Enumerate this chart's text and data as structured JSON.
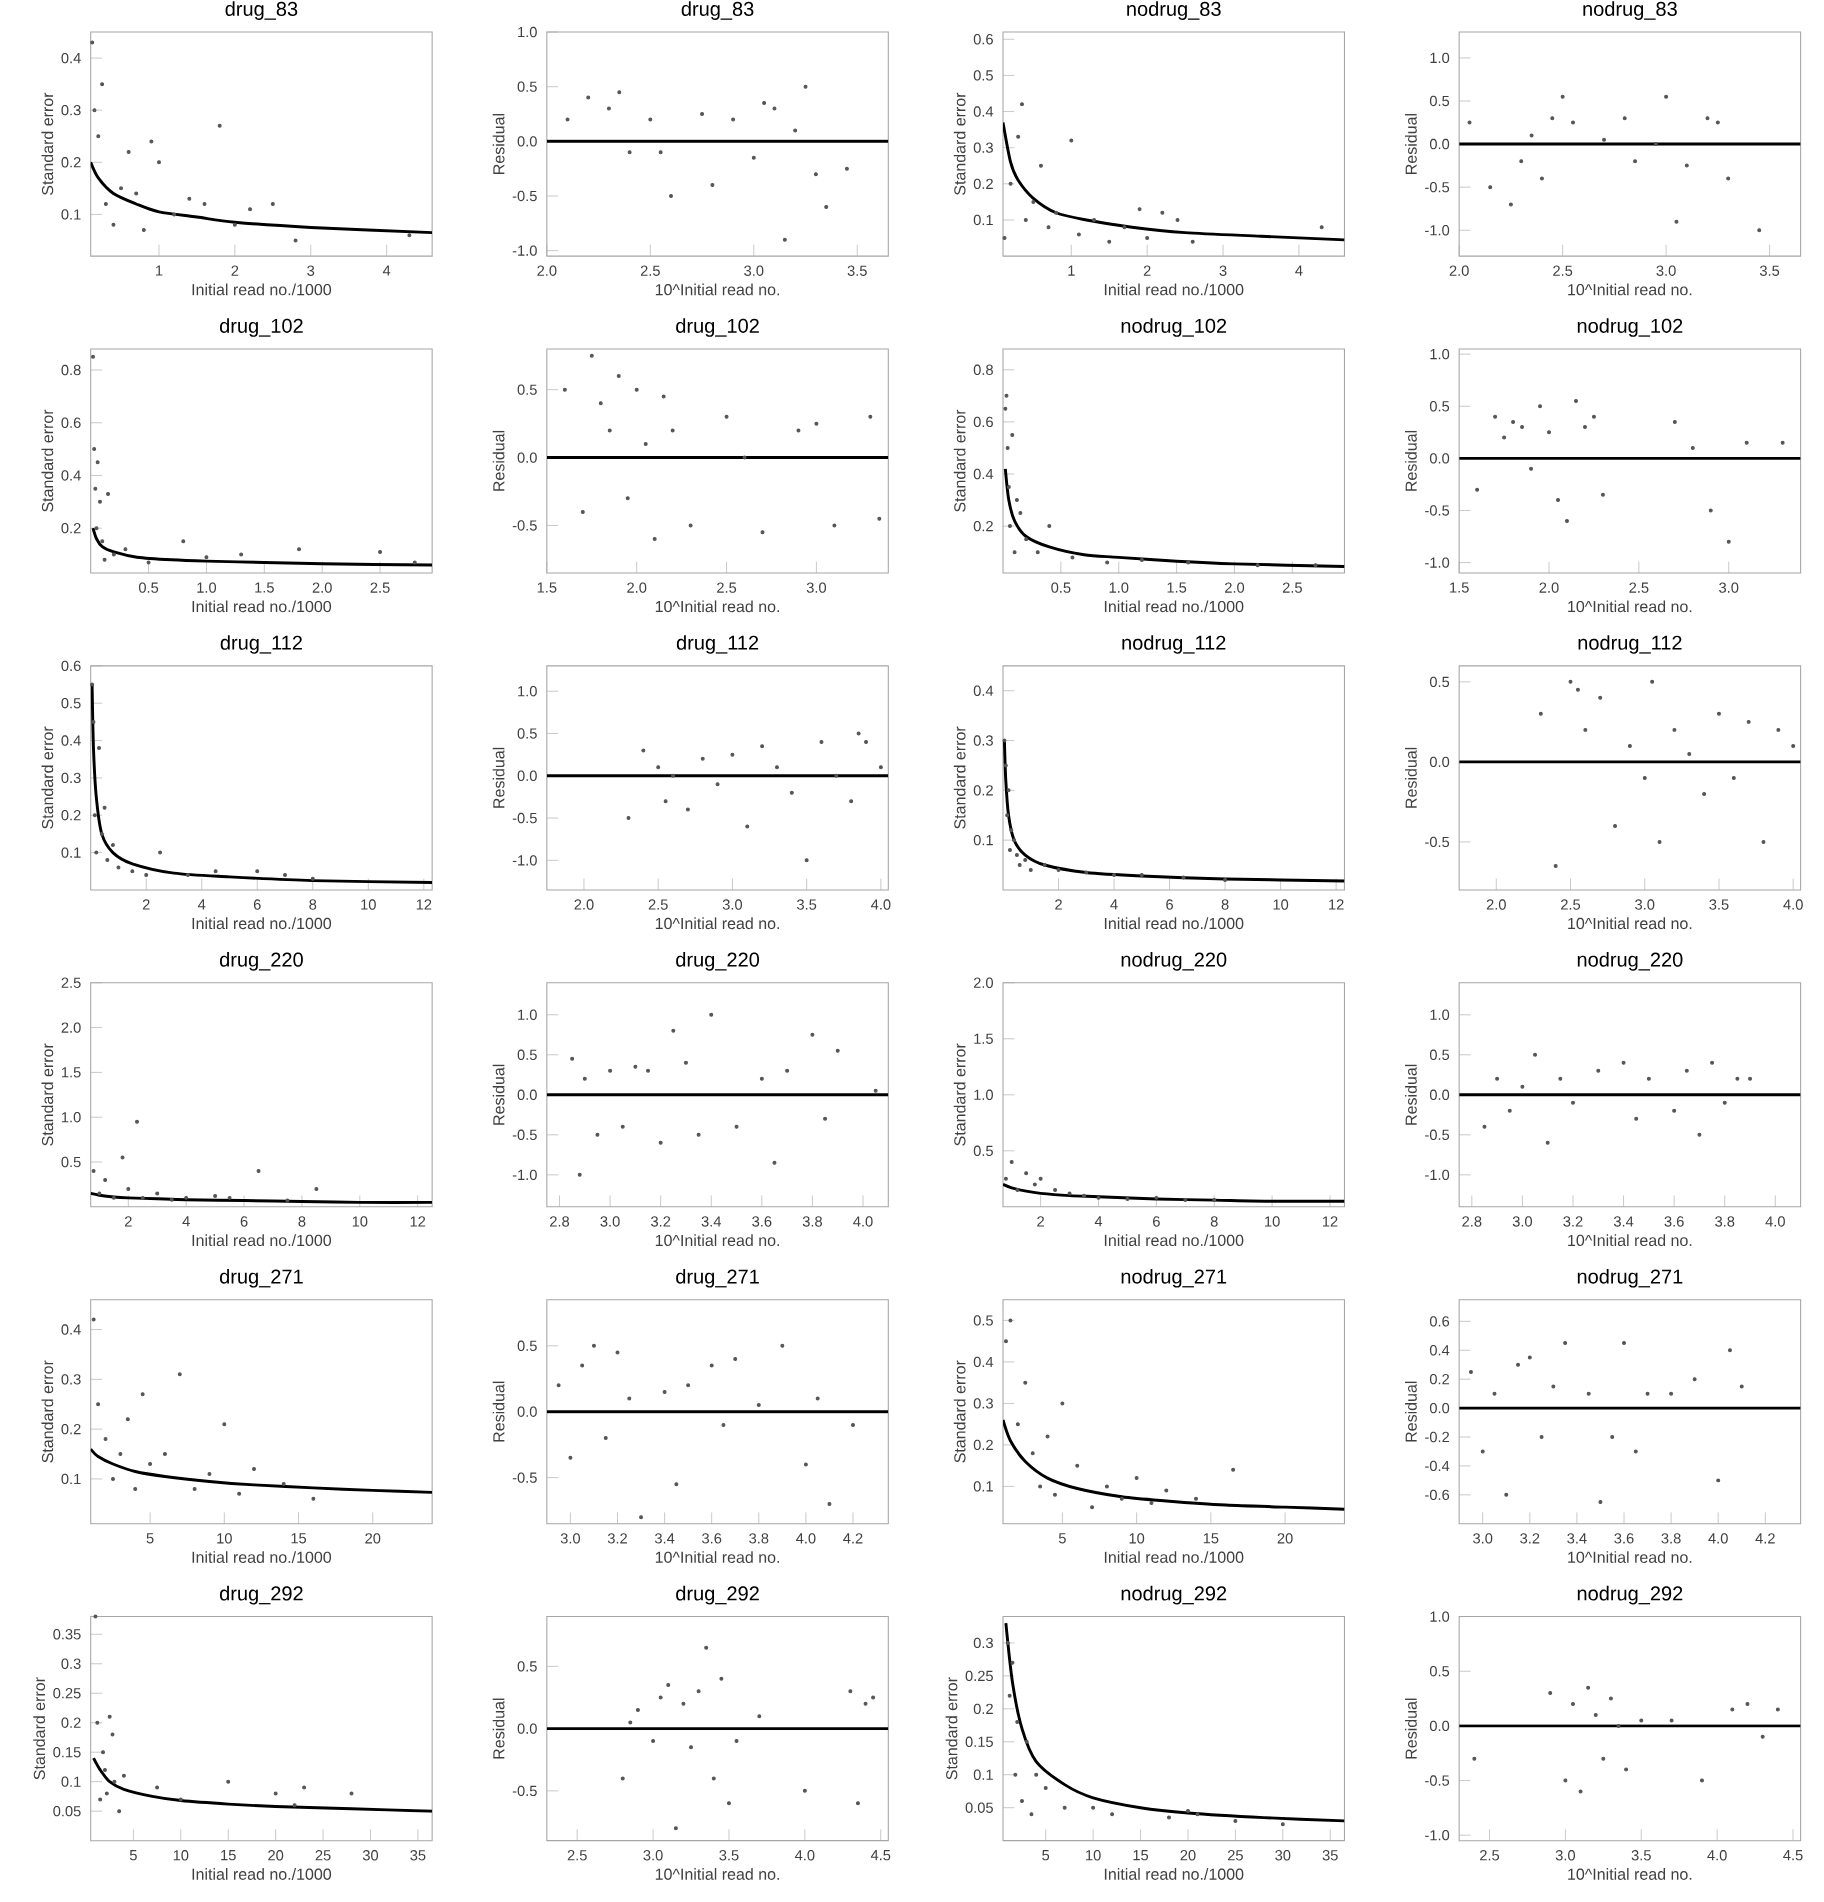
{
  "chart_data": [
    {
      "type": "scatter",
      "title": "drug_83",
      "xlabel": "Initial read no./1000",
      "ylabel": "Standard error",
      "xlim": [
        0.1,
        4.6
      ],
      "ylim": [
        0.02,
        0.45
      ],
      "xticks": [
        1,
        2,
        3,
        4
      ],
      "yticks": [
        0.1,
        0.2,
        0.3,
        0.4
      ],
      "series": [
        {
          "color": "#555555",
          "x": [
            0.12,
            0.15,
            0.2,
            0.25,
            0.3,
            0.4,
            0.5,
            0.6,
            0.7,
            0.8,
            0.9,
            1.0,
            1.2,
            1.4,
            1.6,
            1.8,
            2.0,
            2.2,
            2.5,
            2.8,
            4.3
          ],
          "values": [
            0.43,
            0.3,
            0.25,
            0.35,
            0.12,
            0.08,
            0.15,
            0.22,
            0.14,
            0.07,
            0.24,
            0.2,
            0.1,
            0.13,
            0.12,
            0.27,
            0.08,
            0.11,
            0.12,
            0.05,
            0.06
          ]
        },
        {
          "type": "line",
          "color": "#000000",
          "x": [
            0.1,
            0.2,
            0.4,
            0.7,
            1,
            1.5,
            2,
            3,
            4.6
          ],
          "values": [
            0.2,
            0.17,
            0.14,
            0.12,
            0.105,
            0.095,
            0.085,
            0.075,
            0.065
          ]
        }
      ]
    },
    {
      "type": "scatter",
      "title": "drug_83",
      "xlabel": "10^Initial read no.",
      "ylabel": "Residual",
      "xlim": [
        2.0,
        3.65
      ],
      "ylim": [
        -1.05,
        1.0
      ],
      "xticks": [
        {
          "value": 2,
          "label": "2.0"
        },
        2.5,
        {
          "value": 3,
          "label": "3.0"
        },
        3.5
      ],
      "yticks": [
        {
          "value": -1,
          "label": "-1.0"
        },
        -0.5,
        {
          "value": 0,
          "label": "0.0"
        },
        0.5,
        {
          "value": 1,
          "label": "1.0"
        }
      ],
      "ref_lines": [
        {
          "axis": "y",
          "value": 0
        }
      ],
      "series": [
        {
          "color": "#555555",
          "x": [
            2.1,
            2.2,
            2.3,
            2.35,
            2.4,
            2.5,
            2.55,
            2.6,
            2.75,
            2.8,
            2.9,
            3.0,
            3.05,
            3.1,
            3.15,
            3.2,
            3.25,
            3.3,
            3.35,
            3.45
          ],
          "values": [
            0.2,
            0.4,
            0.3,
            0.45,
            -0.1,
            0.2,
            -0.1,
            -0.5,
            0.25,
            -0.4,
            0.2,
            -0.15,
            0.35,
            0.3,
            -0.9,
            0.1,
            0.5,
            -0.3,
            -0.6,
            -0.25
          ]
        }
      ]
    },
    {
      "type": "scatter",
      "title": "nodrug_83",
      "xlabel": "Initial read no./1000",
      "ylabel": "Standard error",
      "xlim": [
        0.1,
        4.6
      ],
      "ylim": [
        0,
        0.62
      ],
      "xticks": [
        1,
        2,
        3,
        4
      ],
      "yticks": [
        0.1,
        0.2,
        0.3,
        0.4,
        0.5,
        0.6
      ],
      "series": [
        {
          "color": "#555555",
          "x": [
            0.12,
            0.2,
            0.3,
            0.35,
            0.4,
            0.5,
            0.6,
            0.7,
            0.8,
            1.0,
            1.1,
            1.3,
            1.5,
            1.7,
            1.9,
            2.0,
            2.2,
            2.4,
            2.6,
            4.3
          ],
          "values": [
            0.05,
            0.2,
            0.33,
            0.42,
            0.1,
            0.15,
            0.25,
            0.08,
            0.12,
            0.32,
            0.06,
            0.1,
            0.04,
            0.08,
            0.13,
            0.05,
            0.12,
            0.1,
            0.04,
            0.08
          ]
        },
        {
          "type": "line",
          "color": "#000000",
          "x": [
            0.1,
            0.2,
            0.3,
            0.5,
            0.8,
            1.2,
            1.8,
            2.5,
            3.5,
            4.6
          ],
          "values": [
            0.37,
            0.26,
            0.21,
            0.16,
            0.12,
            0.1,
            0.08,
            0.065,
            0.055,
            0.045
          ]
        }
      ]
    },
    {
      "type": "scatter",
      "title": "nodrug_83",
      "xlabel": "10^Initial read no.",
      "ylabel": "Residual",
      "xlim": [
        2.0,
        3.65
      ],
      "ylim": [
        -1.3,
        1.3
      ],
      "xticks": [
        {
          "value": 2,
          "label": "2.0"
        },
        2.5,
        {
          "value": 3,
          "label": "3.0"
        },
        3.5
      ],
      "yticks": [
        {
          "value": -1,
          "label": "-1.0"
        },
        -0.5,
        {
          "value": 0,
          "label": "0.0"
        },
        0.5,
        {
          "value": 1,
          "label": "1.0"
        }
      ],
      "ref_lines": [
        {
          "axis": "y",
          "value": 0
        }
      ],
      "series": [
        {
          "color": "#555555",
          "x": [
            2.05,
            2.15,
            2.25,
            2.3,
            2.35,
            2.4,
            2.45,
            2.5,
            2.55,
            2.7,
            2.8,
            2.85,
            2.95,
            3.0,
            3.05,
            3.1,
            3.2,
            3.25,
            3.3,
            3.45
          ],
          "values": [
            0.25,
            -0.5,
            -0.7,
            -0.2,
            0.1,
            -0.4,
            0.3,
            0.55,
            0.25,
            0.05,
            0.3,
            -0.2,
            0.0,
            0.55,
            -0.9,
            -0.25,
            0.3,
            0.25,
            -0.4,
            -1.0
          ]
        }
      ]
    },
    {
      "type": "scatter",
      "title": "drug_102",
      "xlabel": "Initial read no./1000",
      "ylabel": "Standard error",
      "xlim": [
        0,
        2.95
      ],
      "ylim": [
        0.03,
        0.88
      ],
      "xticks": [
        0.5,
        {
          "value": 1,
          "label": "1.0"
        },
        1.5,
        {
          "value": 2,
          "label": "2.0"
        },
        2.5
      ],
      "yticks": [
        0.2,
        0.4,
        0.6,
        0.8
      ],
      "series": [
        {
          "color": "#555555",
          "x": [
            0.02,
            0.03,
            0.04,
            0.05,
            0.06,
            0.08,
            0.1,
            0.12,
            0.15,
            0.2,
            0.3,
            0.5,
            0.8,
            1.0,
            1.3,
            1.8,
            2.5,
            2.8
          ],
          "values": [
            0.85,
            0.5,
            0.35,
            0.2,
            0.45,
            0.3,
            0.15,
            0.08,
            0.33,
            0.1,
            0.12,
            0.07,
            0.15,
            0.09,
            0.1,
            0.12,
            0.11,
            0.07
          ]
        },
        {
          "type": "line",
          "color": "#000000",
          "x": [
            0.02,
            0.05,
            0.1,
            0.2,
            0.4,
            0.7,
            1.0,
            1.5,
            2.0,
            2.95
          ],
          "values": [
            0.2,
            0.16,
            0.13,
            0.11,
            0.09,
            0.08,
            0.075,
            0.07,
            0.065,
            0.06
          ]
        }
      ]
    },
    {
      "type": "scatter",
      "title": "drug_102",
      "xlabel": "10^Initial read no.",
      "ylabel": "Residual",
      "xlim": [
        1.5,
        3.4
      ],
      "ylim": [
        -0.85,
        0.8
      ],
      "xticks": [
        1.5,
        {
          "value": 2,
          "label": "2.0"
        },
        2.5,
        {
          "value": 3,
          "label": "3.0"
        }
      ],
      "yticks": [
        -0.5,
        {
          "value": 0,
          "label": "0.0"
        },
        0.5
      ],
      "ref_lines": [
        {
          "axis": "y",
          "value": 0
        }
      ],
      "series": [
        {
          "color": "#555555",
          "x": [
            1.6,
            1.7,
            1.75,
            1.8,
            1.85,
            1.9,
            1.95,
            2.0,
            2.05,
            2.1,
            2.15,
            2.2,
            2.3,
            2.5,
            2.6,
            2.7,
            2.9,
            3.0,
            3.1,
            3.3,
            3.35
          ],
          "values": [
            0.5,
            -0.4,
            0.75,
            0.4,
            0.2,
            0.6,
            -0.3,
            0.5,
            0.1,
            -0.6,
            0.45,
            0.2,
            -0.5,
            0.3,
            0.0,
            -0.55,
            0.2,
            0.25,
            -0.5,
            0.3,
            -0.45
          ]
        }
      ]
    },
    {
      "type": "scatter",
      "title": "nodrug_102",
      "xlabel": "Initial read no./1000",
      "ylabel": "Standard error",
      "xlim": [
        0,
        2.95
      ],
      "ylim": [
        0.02,
        0.88
      ],
      "xticks": [
        0.5,
        {
          "value": 1,
          "label": "1.0"
        },
        1.5,
        {
          "value": 2,
          "label": "2.0"
        },
        2.5
      ],
      "yticks": [
        0.2,
        0.4,
        0.6,
        0.8
      ],
      "series": [
        {
          "color": "#555555",
          "x": [
            0.02,
            0.03,
            0.04,
            0.05,
            0.06,
            0.08,
            0.1,
            0.12,
            0.15,
            0.2,
            0.3,
            0.4,
            0.6,
            0.9,
            1.2,
            1.6,
            2.2,
            2.7
          ],
          "values": [
            0.65,
            0.7,
            0.5,
            0.35,
            0.2,
            0.55,
            0.1,
            0.3,
            0.25,
            0.15,
            0.1,
            0.2,
            0.08,
            0.06,
            0.07,
            0.06,
            0.05,
            0.05
          ]
        },
        {
          "type": "line",
          "color": "#000000",
          "x": [
            0.02,
            0.05,
            0.1,
            0.2,
            0.4,
            0.7,
            1.0,
            1.5,
            2.0,
            2.95
          ],
          "values": [
            0.42,
            0.3,
            0.22,
            0.16,
            0.12,
            0.09,
            0.08,
            0.065,
            0.055,
            0.045
          ]
        }
      ]
    },
    {
      "type": "scatter",
      "title": "nodrug_102",
      "xlabel": "10^Initial read no.",
      "ylabel": "Residual",
      "xlim": [
        1.5,
        3.4
      ],
      "ylim": [
        -1.1,
        1.05
      ],
      "xticks": [
        1.5,
        {
          "value": 2,
          "label": "2.0"
        },
        2.5,
        {
          "value": 3,
          "label": "3.0"
        }
      ],
      "yticks": [
        {
          "value": -1,
          "label": "-1.0"
        },
        -0.5,
        {
          "value": 0,
          "label": "0.0"
        },
        0.5,
        {
          "value": 1,
          "label": "1.0"
        }
      ],
      "ref_lines": [
        {
          "axis": "y",
          "value": 0
        }
      ],
      "series": [
        {
          "color": "#555555",
          "x": [
            1.6,
            1.7,
            1.75,
            1.8,
            1.85,
            1.9,
            1.95,
            2.0,
            2.05,
            2.1,
            2.15,
            2.2,
            2.25,
            2.3,
            2.7,
            2.8,
            2.9,
            3.0,
            3.1,
            3.3
          ],
          "values": [
            -0.3,
            0.4,
            0.2,
            0.35,
            0.3,
            -0.1,
            0.5,
            0.25,
            -0.4,
            -0.6,
            0.55,
            0.3,
            0.4,
            -0.35,
            0.35,
            0.1,
            -0.5,
            -0.8,
            0.15,
            0.15
          ]
        }
      ]
    },
    {
      "type": "scatter",
      "title": "drug_112",
      "xlabel": "Initial read no./1000",
      "ylabel": "Standard error",
      "xlim": [
        0,
        12.3
      ],
      "ylim": [
        0,
        0.6
      ],
      "xticks": [
        2,
        4,
        6,
        8,
        10,
        12
      ],
      "yticks": [
        0.1,
        0.2,
        0.3,
        0.4,
        0.5,
        0.6
      ],
      "series": [
        {
          "color": "#555555",
          "x": [
            0.05,
            0.1,
            0.15,
            0.2,
            0.3,
            0.4,
            0.5,
            0.6,
            0.8,
            1.0,
            1.5,
            2.0,
            2.5,
            3.5,
            4.5,
            6.0,
            7.0,
            8.0
          ],
          "values": [
            0.55,
            0.45,
            0.2,
            0.1,
            0.38,
            0.15,
            0.22,
            0.08,
            0.12,
            0.06,
            0.05,
            0.04,
            0.1,
            0.04,
            0.05,
            0.05,
            0.04,
            0.03
          ]
        },
        {
          "type": "line",
          "color": "#000000",
          "x": [
            0.05,
            0.1,
            0.2,
            0.4,
            0.8,
            1.5,
            3,
            5,
            8,
            12.3
          ],
          "values": [
            0.55,
            0.38,
            0.25,
            0.15,
            0.1,
            0.07,
            0.045,
            0.035,
            0.025,
            0.02
          ]
        }
      ]
    },
    {
      "type": "scatter",
      "title": "drug_112",
      "xlabel": "10^Initial read no.",
      "ylabel": "Residual",
      "xlim": [
        1.75,
        4.05
      ],
      "ylim": [
        -1.35,
        1.3
      ],
      "xticks": [
        {
          "value": 2,
          "label": "2.0"
        },
        2.5,
        {
          "value": 3,
          "label": "3.0"
        },
        3.5,
        {
          "value": 4,
          "label": "4.0"
        }
      ],
      "yticks": [
        {
          "value": -1,
          "label": "-1.0"
        },
        -0.5,
        {
          "value": 0,
          "label": "0.0"
        },
        0.5,
        {
          "value": 1,
          "label": "1.0"
        }
      ],
      "ref_lines": [
        {
          "axis": "y",
          "value": 0
        }
      ],
      "series": [
        {
          "color": "#555555",
          "x": [
            2.3,
            2.4,
            2.5,
            2.55,
            2.6,
            2.7,
            2.8,
            2.9,
            3.0,
            3.1,
            3.2,
            3.3,
            3.4,
            3.5,
            3.6,
            3.7,
            3.8,
            3.85,
            3.9,
            4.0
          ],
          "values": [
            -0.5,
            0.3,
            0.1,
            -0.3,
            0.0,
            -0.4,
            0.2,
            -0.1,
            0.25,
            -0.6,
            0.35,
            0.1,
            -0.2,
            -1.0,
            0.4,
            0.0,
            -0.3,
            0.5,
            0.4,
            0.1
          ]
        }
      ]
    },
    {
      "type": "scatter",
      "title": "nodrug_112",
      "xlabel": "Initial read no./1000",
      "ylabel": "Standard error",
      "xlim": [
        0,
        12.3
      ],
      "ylim": [
        0,
        0.45
      ],
      "xticks": [
        2,
        4,
        6,
        8,
        10,
        12
      ],
      "yticks": [
        0.1,
        0.2,
        0.3,
        0.4
      ],
      "series": [
        {
          "color": "#555555",
          "x": [
            0.05,
            0.1,
            0.15,
            0.2,
            0.25,
            0.3,
            0.4,
            0.5,
            0.6,
            0.8,
            1.0,
            1.5,
            2.0,
            3.0,
            4.0,
            5.0,
            6.5,
            8.0
          ],
          "values": [
            0.3,
            0.25,
            0.15,
            0.2,
            0.08,
            0.12,
            0.1,
            0.07,
            0.05,
            0.06,
            0.04,
            0.05,
            0.04,
            0.035,
            0.03,
            0.03,
            0.025,
            0.02
          ]
        },
        {
          "type": "line",
          "color": "#000000",
          "x": [
            0.05,
            0.1,
            0.2,
            0.4,
            0.8,
            1.5,
            3,
            5,
            8,
            12.3
          ],
          "values": [
            0.3,
            0.22,
            0.15,
            0.1,
            0.07,
            0.05,
            0.035,
            0.028,
            0.022,
            0.018
          ]
        }
      ]
    },
    {
      "type": "scatter",
      "title": "nodrug_112",
      "xlabel": "10^Initial read no.",
      "ylabel": "Residual",
      "xlim": [
        1.75,
        4.05
      ],
      "ylim": [
        -0.8,
        0.6
      ],
      "xticks": [
        {
          "value": 2,
          "label": "2.0"
        },
        2.5,
        {
          "value": 3,
          "label": "3.0"
        },
        3.5,
        {
          "value": 4,
          "label": "4.0"
        }
      ],
      "yticks": [
        -0.5,
        {
          "value": 0,
          "label": "0.0"
        },
        0.5
      ],
      "ref_lines": [
        {
          "axis": "y",
          "value": 0
        }
      ],
      "series": [
        {
          "color": "#555555",
          "x": [
            2.3,
            2.4,
            2.5,
            2.55,
            2.6,
            2.7,
            2.8,
            2.9,
            3.0,
            3.05,
            3.1,
            3.2,
            3.3,
            3.4,
            3.5,
            3.6,
            3.7,
            3.8,
            3.9,
            4.0
          ],
          "values": [
            0.3,
            -0.65,
            0.5,
            0.45,
            0.2,
            0.4,
            -0.4,
            0.1,
            -0.1,
            0.5,
            -0.5,
            0.2,
            0.05,
            -0.2,
            0.3,
            -0.1,
            0.25,
            -0.5,
            0.2,
            0.1
          ]
        }
      ]
    },
    {
      "type": "scatter",
      "title": "drug_220",
      "xlabel": "Initial read no./1000",
      "ylabel": "Standard error",
      "xlim": [
        0.7,
        12.5
      ],
      "ylim": [
        0,
        2.5
      ],
      "xticks": [
        2,
        4,
        6,
        8,
        10,
        12
      ],
      "yticks": [
        0.5,
        {
          "value": 1,
          "label": "1.0"
        },
        1.5,
        {
          "value": 2,
          "label": "2.0"
        },
        2.5
      ],
      "series": [
        {
          "color": "#555555",
          "x": [
            0.8,
            1.0,
            1.2,
            1.5,
            1.8,
            2.0,
            2.3,
            2.5,
            3.0,
            3.5,
            4.0,
            5.0,
            5.5,
            6.5,
            7.5,
            8.5
          ],
          "values": [
            0.4,
            0.15,
            0.3,
            0.1,
            0.55,
            0.2,
            0.95,
            0.1,
            0.15,
            0.08,
            0.1,
            0.12,
            0.1,
            0.4,
            0.07,
            0.2
          ]
        },
        {
          "type": "line",
          "color": "#000000",
          "x": [
            0.7,
            1,
            1.5,
            2,
            3,
            4,
            6,
            8,
            10,
            12.5
          ],
          "values": [
            0.15,
            0.13,
            0.11,
            0.1,
            0.09,
            0.08,
            0.07,
            0.06,
            0.05,
            0.05
          ]
        }
      ]
    },
    {
      "type": "scatter",
      "title": "drug_220",
      "xlabel": "10^Initial read no.",
      "ylabel": "Residual",
      "xlim": [
        2.75,
        4.1
      ],
      "ylim": [
        -1.4,
        1.4
      ],
      "xticks": [
        2.8,
        {
          "value": 3,
          "label": "3.0"
        },
        3.2,
        3.4,
        3.6,
        3.8,
        {
          "value": 4,
          "label": "4.0"
        }
      ],
      "yticks": [
        {
          "value": -1,
          "label": "-1.0"
        },
        -0.5,
        {
          "value": 0,
          "label": "0.0"
        },
        0.5,
        {
          "value": 1,
          "label": "1.0"
        }
      ],
      "ref_lines": [
        {
          "axis": "y",
          "value": 0
        }
      ],
      "series": [
        {
          "color": "#555555",
          "x": [
            2.85,
            2.88,
            2.9,
            2.95,
            3.0,
            3.05,
            3.1,
            3.15,
            3.2,
            3.25,
            3.3,
            3.35,
            3.4,
            3.5,
            3.6,
            3.65,
            3.7,
            3.8,
            3.85,
            3.9,
            4.05
          ],
          "values": [
            0.45,
            -1.0,
            0.2,
            -0.5,
            0.3,
            -0.4,
            0.35,
            0.3,
            -0.6,
            0.8,
            0.4,
            -0.5,
            1.0,
            -0.4,
            0.2,
            -0.85,
            0.3,
            0.75,
            -0.3,
            0.55,
            0.05
          ]
        }
      ]
    },
    {
      "type": "scatter",
      "title": "nodrug_220",
      "xlabel": "Initial read no./1000",
      "ylabel": "Standard error",
      "xlim": [
        0.7,
        12.5
      ],
      "ylim": [
        0,
        2.0
      ],
      "xticks": [
        2,
        4,
        6,
        8,
        10,
        12
      ],
      "yticks": [
        0.5,
        {
          "value": 1,
          "label": "1.0"
        },
        1.5,
        {
          "value": 2,
          "label": "2.0"
        }
      ],
      "series": [
        {
          "color": "#555555",
          "x": [
            0.8,
            1.0,
            1.2,
            1.5,
            1.8,
            2.0,
            2.5,
            3.0,
            3.5,
            4.0,
            5.0,
            6.0,
            7.0,
            8.0
          ],
          "values": [
            0.25,
            0.4,
            0.15,
            0.3,
            0.2,
            0.25,
            0.15,
            0.12,
            0.1,
            0.08,
            0.07,
            0.08,
            0.06,
            0.06
          ]
        },
        {
          "type": "line",
          "color": "#000000",
          "x": [
            0.7,
            1,
            1.5,
            2,
            3,
            4,
            6,
            8,
            10,
            12.5
          ],
          "values": [
            0.2,
            0.17,
            0.14,
            0.12,
            0.1,
            0.09,
            0.07,
            0.06,
            0.05,
            0.05
          ]
        }
      ]
    },
    {
      "type": "scatter",
      "title": "nodrug_220",
      "xlabel": "10^Initial read no.",
      "ylabel": "Residual",
      "xlim": [
        2.75,
        4.1
      ],
      "ylim": [
        -1.4,
        1.4
      ],
      "xticks": [
        2.8,
        {
          "value": 3,
          "label": "3.0"
        },
        3.2,
        3.4,
        3.6,
        3.8,
        {
          "value": 4,
          "label": "4.0"
        }
      ],
      "yticks": [
        {
          "value": -1,
          "label": "-1.0"
        },
        -0.5,
        {
          "value": 0,
          "label": "0.0"
        },
        0.5,
        {
          "value": 1,
          "label": "1.0"
        }
      ],
      "ref_lines": [
        {
          "axis": "y",
          "value": 0
        }
      ],
      "series": [
        {
          "color": "#555555",
          "x": [
            2.85,
            2.9,
            2.95,
            3.0,
            3.05,
            3.1,
            3.15,
            3.2,
            3.3,
            3.4,
            3.45,
            3.5,
            3.6,
            3.65,
            3.7,
            3.75,
            3.8,
            3.85,
            3.9
          ],
          "values": [
            -0.4,
            0.2,
            -0.2,
            0.1,
            0.5,
            -0.6,
            0.2,
            -0.1,
            0.3,
            0.4,
            -0.3,
            0.2,
            -0.2,
            0.3,
            -0.5,
            0.4,
            -0.1,
            0.2,
            0.2
          ]
        }
      ]
    },
    {
      "type": "scatter",
      "title": "drug_271",
      "xlabel": "Initial read no./1000",
      "ylabel": "Standard error",
      "xlim": [
        1,
        24
      ],
      "ylim": [
        0.01,
        0.46
      ],
      "xticks": [
        5,
        10,
        15,
        20
      ],
      "yticks": [
        0.1,
        0.2,
        0.3,
        0.4
      ],
      "series": [
        {
          "color": "#555555",
          "x": [
            1.2,
            1.5,
            2.0,
            2.5,
            3.0,
            3.5,
            4.0,
            4.5,
            5.0,
            6.0,
            7.0,
            8.0,
            9.0,
            10.0,
            11.0,
            12.0,
            14.0,
            16.0
          ],
          "values": [
            0.42,
            0.25,
            0.18,
            0.1,
            0.15,
            0.22,
            0.08,
            0.27,
            0.13,
            0.15,
            0.31,
            0.08,
            0.11,
            0.21,
            0.07,
            0.12,
            0.09,
            0.06
          ]
        },
        {
          "type": "line",
          "color": "#000000",
          "x": [
            1,
            1.5,
            2.5,
            4,
            6,
            9,
            12,
            16,
            20,
            24
          ],
          "values": [
            0.16,
            0.145,
            0.13,
            0.115,
            0.105,
            0.095,
            0.088,
            0.082,
            0.077,
            0.073
          ]
        }
      ]
    },
    {
      "type": "scatter",
      "title": "drug_271",
      "xlabel": "10^Initial read no.",
      "ylabel": "Residual",
      "xlim": [
        2.9,
        4.35
      ],
      "ylim": [
        -0.85,
        0.85
      ],
      "xticks": [
        {
          "value": 3,
          "label": "3.0"
        },
        3.2,
        3.4,
        3.6,
        3.8,
        {
          "value": 4,
          "label": "4.0"
        },
        4.2
      ],
      "yticks": [
        -0.5,
        {
          "value": 0,
          "label": "0.0"
        },
        0.5
      ],
      "ref_lines": [
        {
          "axis": "y",
          "value": 0
        }
      ],
      "series": [
        {
          "color": "#555555",
          "x": [
            2.95,
            3.0,
            3.05,
            3.1,
            3.15,
            3.2,
            3.25,
            3.3,
            3.4,
            3.45,
            3.5,
            3.6,
            3.65,
            3.7,
            3.8,
            3.9,
            4.0,
            4.05,
            4.1,
            4.2
          ],
          "values": [
            0.2,
            -0.35,
            0.35,
            0.5,
            -0.2,
            0.45,
            0.1,
            -0.8,
            0.15,
            -0.55,
            0.2,
            0.35,
            -0.1,
            0.4,
            0.05,
            0.5,
            -0.4,
            0.1,
            -0.7,
            -0.1
          ]
        }
      ]
    },
    {
      "type": "scatter",
      "title": "nodrug_271",
      "xlabel": "Initial read no./1000",
      "ylabel": "Standard error",
      "xlim": [
        1,
        24
      ],
      "ylim": [
        0.01,
        0.55
      ],
      "xticks": [
        5,
        10,
        15,
        20
      ],
      "yticks": [
        0.1,
        0.2,
        0.3,
        0.4,
        0.5
      ],
      "series": [
        {
          "color": "#555555",
          "x": [
            1.2,
            1.5,
            2.0,
            2.5,
            3.0,
            3.5,
            4.0,
            4.5,
            5.0,
            6.0,
            7.0,
            8.0,
            9.0,
            10.0,
            11.0,
            12.0,
            14.0,
            16.5
          ],
          "values": [
            0.45,
            0.5,
            0.25,
            0.35,
            0.18,
            0.1,
            0.22,
            0.08,
            0.3,
            0.15,
            0.05,
            0.1,
            0.07,
            0.12,
            0.06,
            0.09,
            0.07,
            0.14
          ]
        },
        {
          "type": "line",
          "color": "#000000",
          "x": [
            1,
            1.5,
            2.5,
            4,
            6,
            9,
            12,
            16,
            20,
            24
          ],
          "values": [
            0.26,
            0.21,
            0.16,
            0.12,
            0.095,
            0.075,
            0.065,
            0.055,
            0.05,
            0.045
          ]
        }
      ]
    },
    {
      "type": "scatter",
      "title": "nodrug_271",
      "xlabel": "10^Initial read no.",
      "ylabel": "Residual",
      "xlim": [
        2.9,
        4.35
      ],
      "ylim": [
        -0.8,
        0.75
      ],
      "xticks": [
        {
          "value": 3,
          "label": "3.0"
        },
        3.2,
        3.4,
        3.6,
        3.8,
        {
          "value": 4,
          "label": "4.0"
        },
        4.2
      ],
      "yticks": [
        -0.6,
        -0.4,
        -0.2,
        {
          "value": 0,
          "label": "0.0"
        },
        0.2,
        0.4,
        0.6
      ],
      "ref_lines": [
        {
          "axis": "y",
          "value": 0
        }
      ],
      "series": [
        {
          "color": "#555555",
          "x": [
            2.95,
            3.0,
            3.05,
            3.1,
            3.15,
            3.2,
            3.25,
            3.3,
            3.35,
            3.45,
            3.5,
            3.55,
            3.6,
            3.65,
            3.7,
            3.8,
            3.9,
            4.0,
            4.05,
            4.1
          ],
          "values": [
            0.25,
            -0.3,
            0.1,
            -0.6,
            0.3,
            0.35,
            -0.2,
            0.15,
            0.45,
            0.1,
            -0.65,
            -0.2,
            0.45,
            -0.3,
            0.1,
            0.1,
            0.2,
            -0.5,
            0.4,
            0.15
          ]
        }
      ]
    },
    {
      "type": "scatter",
      "title": "drug_292",
      "xlabel": "Initial read no./1000",
      "ylabel": "Standard error",
      "xlim": [
        0.5,
        36.5
      ],
      "ylim": [
        0,
        0.38
      ],
      "xticks": [
        5,
        10,
        15,
        20,
        25,
        30,
        35
      ],
      "yticks": [
        0.05,
        0.1,
        0.15,
        0.2,
        0.25,
        0.3,
        0.35
      ],
      "series": [
        {
          "color": "#555555",
          "x": [
            1.0,
            1.2,
            1.5,
            1.8,
            2.0,
            2.2,
            2.5,
            2.8,
            3.0,
            3.5,
            4.0,
            7.5,
            10.0,
            15.0,
            20.0,
            22.0,
            23.0,
            28.0
          ],
          "values": [
            0.38,
            0.2,
            0.07,
            0.15,
            0.12,
            0.08,
            0.21,
            0.18,
            0.1,
            0.05,
            0.11,
            0.09,
            0.07,
            0.1,
            0.08,
            0.06,
            0.09,
            0.08
          ]
        },
        {
          "type": "line",
          "color": "#000000",
          "x": [
            0.8,
            1.5,
            2.5,
            4,
            7,
            10,
            15,
            20,
            28,
            36.5
          ],
          "values": [
            0.14,
            0.12,
            0.1,
            0.087,
            0.075,
            0.068,
            0.062,
            0.058,
            0.054,
            0.05
          ]
        }
      ]
    },
    {
      "type": "scatter",
      "title": "drug_292",
      "xlabel": "10^Initial read no.",
      "ylabel": "Residual",
      "xlim": [
        2.3,
        4.55
      ],
      "ylim": [
        -0.9,
        0.9
      ],
      "xticks": [
        2.5,
        {
          "value": 3,
          "label": "3.0"
        },
        3.5,
        {
          "value": 4,
          "label": "4.0"
        },
        4.5
      ],
      "yticks": [
        -0.5,
        {
          "value": 0,
          "label": "0.0"
        },
        0.5
      ],
      "ref_lines": [
        {
          "axis": "y",
          "value": 0
        }
      ],
      "series": [
        {
          "color": "#555555",
          "x": [
            2.8,
            2.85,
            2.9,
            3.0,
            3.05,
            3.1,
            3.15,
            3.2,
            3.25,
            3.3,
            3.35,
            3.4,
            3.45,
            3.5,
            3.55,
            3.7,
            4.0,
            4.3,
            4.35,
            4.4,
            4.45
          ],
          "values": [
            -0.4,
            0.05,
            0.15,
            -0.1,
            0.25,
            0.35,
            -0.8,
            0.2,
            -0.15,
            0.3,
            0.65,
            -0.4,
            0.4,
            -0.6,
            -0.1,
            0.1,
            -0.5,
            0.3,
            -0.6,
            0.2,
            0.25
          ]
        }
      ]
    },
    {
      "type": "scatter",
      "title": "nodrug_292",
      "xlabel": "Initial read no./1000",
      "ylabel": "Standard error",
      "xlim": [
        0.5,
        36.5
      ],
      "ylim": [
        0,
        0.34
      ],
      "xticks": [
        5,
        10,
        15,
        20,
        25,
        30,
        35
      ],
      "yticks": [
        0.05,
        0.1,
        0.15,
        0.2,
        0.25,
        0.3
      ],
      "series": [
        {
          "color": "#555555",
          "x": [
            1.0,
            1.2,
            1.5,
            1.8,
            2.0,
            2.5,
            3.0,
            3.5,
            4.0,
            5.0,
            7.0,
            10.0,
            12.0,
            18.0,
            20.0,
            21.0,
            25.0,
            30.0
          ],
          "values": [
            0.3,
            0.22,
            0.27,
            0.1,
            0.18,
            0.06,
            0.15,
            0.04,
            0.1,
            0.08,
            0.05,
            0.05,
            0.04,
            0.035,
            0.045,
            0.04,
            0.03,
            0.025
          ]
        },
        {
          "type": "line",
          "color": "#000000",
          "x": [
            0.8,
            1.5,
            2.5,
            4,
            7,
            10,
            15,
            20,
            28,
            36.5
          ],
          "values": [
            0.33,
            0.24,
            0.17,
            0.12,
            0.085,
            0.065,
            0.05,
            0.042,
            0.035,
            0.03
          ]
        }
      ]
    },
    {
      "type": "scatter",
      "title": "nodrug_292",
      "xlabel": "10^Initial read no.",
      "ylabel": "Residual",
      "xlim": [
        2.3,
        4.55
      ],
      "ylim": [
        -1.05,
        1.0
      ],
      "xticks": [
        2.5,
        {
          "value": 3,
          "label": "3.0"
        },
        3.5,
        {
          "value": 4,
          "label": "4.0"
        },
        4.5
      ],
      "yticks": [
        {
          "value": -1,
          "label": "-1.0"
        },
        -0.5,
        {
          "value": 0,
          "label": "0.0"
        },
        0.5,
        {
          "value": 1,
          "label": "1.0"
        }
      ],
      "ref_lines": [
        {
          "axis": "y",
          "value": 0
        }
      ],
      "series": [
        {
          "color": "#555555",
          "x": [
            2.4,
            2.9,
            3.0,
            3.05,
            3.1,
            3.15,
            3.2,
            3.25,
            3.3,
            3.35,
            3.4,
            3.5,
            3.7,
            3.9,
            4.1,
            4.2,
            4.3,
            4.4
          ],
          "values": [
            -0.3,
            0.3,
            -0.5,
            0.2,
            -0.6,
            0.35,
            0.1,
            -0.3,
            0.25,
            0.0,
            -0.4,
            0.05,
            0.05,
            -0.5,
            0.15,
            0.2,
            -0.1,
            0.15
          ]
        }
      ]
    }
  ]
}
